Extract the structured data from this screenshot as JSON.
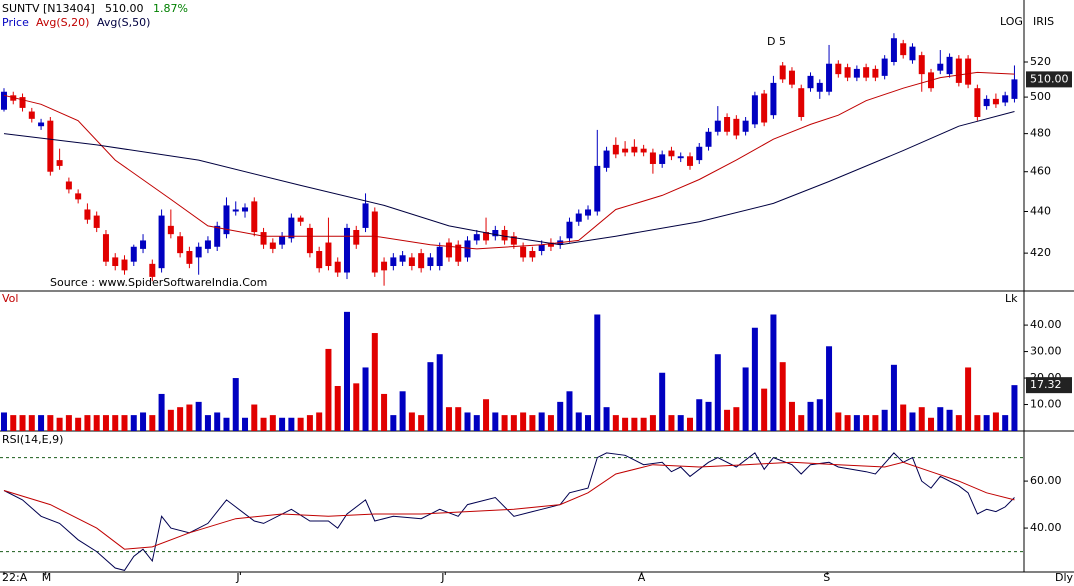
{
  "chart_data": [
    {
      "type": "candlestick",
      "title": "SUNTV [N13404]",
      "last_label": "510.00",
      "change": "1.87%",
      "change_color": "#008000",
      "name": "Price",
      "up_color": "#0000c0",
      "down_color": "#e00000",
      "scale_labels": [
        "LOG",
        "IRIS"
      ],
      "annotation": "D 5",
      "source": "Source : www.SpiderSoftwareIndia.Com",
      "log": true,
      "xlim": [
        -0.43,
        110.03
      ],
      "ylim": [
        402.6,
        557.3
      ],
      "yticks": [
        420,
        440,
        460,
        480,
        500,
        520
      ],
      "ohlc": [
        [
          493,
          505,
          492,
          503
        ],
        [
          501,
          503,
          496,
          498
        ],
        [
          500,
          502,
          492,
          494
        ],
        [
          492,
          494,
          486,
          488
        ],
        [
          484,
          488,
          482,
          486
        ],
        [
          487,
          489,
          458,
          460
        ],
        [
          466,
          472,
          461,
          463
        ],
        [
          455,
          457,
          449,
          451
        ],
        [
          449,
          451,
          444,
          446
        ],
        [
          441,
          444,
          434,
          436
        ],
        [
          438,
          440,
          430,
          432
        ],
        [
          429,
          431,
          414,
          416
        ],
        [
          418,
          420,
          412,
          414
        ],
        [
          417,
          419,
          410,
          412
        ],
        [
          416,
          424,
          414,
          423
        ],
        [
          422,
          429,
          420,
          426
        ],
        [
          415,
          417,
          407,
          409
        ],
        [
          413,
          441,
          411,
          438
        ],
        [
          433,
          441,
          427,
          429
        ],
        [
          428,
          430,
          418,
          420
        ],
        [
          421,
          423,
          413,
          415
        ],
        [
          418,
          425,
          410,
          423
        ],
        [
          422,
          428,
          420,
          426
        ],
        [
          423,
          435,
          421,
          433
        ],
        [
          429,
          447,
          427,
          443
        ],
        [
          440,
          445,
          438,
          441
        ],
        [
          440,
          444,
          437,
          442
        ],
        [
          445,
          447,
          428,
          430
        ],
        [
          430,
          432,
          422,
          424
        ],
        [
          425,
          427,
          420,
          422
        ],
        [
          424,
          430,
          422,
          428
        ],
        [
          427,
          439,
          425,
          437
        ],
        [
          437,
          438,
          433,
          435
        ],
        [
          432,
          434,
          418,
          420
        ],
        [
          421,
          423,
          411,
          413
        ],
        [
          425,
          437,
          412,
          414
        ],
        [
          416,
          418,
          409,
          411
        ],
        [
          411,
          434,
          408,
          432
        ],
        [
          431,
          433,
          422,
          424
        ],
        [
          432,
          449,
          430,
          444
        ],
        [
          440,
          442,
          409,
          411
        ],
        [
          416,
          418,
          405,
          412
        ],
        [
          414,
          420,
          412,
          418
        ],
        [
          416,
          421,
          414,
          419
        ],
        [
          418,
          420,
          412,
          414
        ],
        [
          420,
          422,
          411,
          413
        ],
        [
          414,
          420,
          412,
          418
        ],
        [
          414,
          425,
          412,
          423
        ],
        [
          425,
          427,
          416,
          418
        ],
        [
          424,
          426,
          414,
          416
        ],
        [
          418,
          428,
          416,
          426
        ],
        [
          426,
          431,
          424,
          429
        ],
        [
          430,
          437,
          424,
          426
        ],
        [
          428,
          433,
          426,
          431
        ],
        [
          431,
          433,
          424,
          426
        ],
        [
          428,
          430,
          422,
          424
        ],
        [
          423,
          425,
          416,
          418
        ],
        [
          421,
          423,
          416,
          418
        ],
        [
          421,
          426,
          419,
          424
        ],
        [
          425,
          427,
          421,
          423
        ],
        [
          424,
          428,
          422,
          426
        ],
        [
          427,
          437,
          425,
          435
        ],
        [
          435,
          441,
          433,
          439
        ],
        [
          438,
          443,
          436,
          441
        ],
        [
          440,
          482,
          438,
          463
        ],
        [
          462,
          473,
          460,
          471
        ],
        [
          474,
          478,
          467,
          469
        ],
        [
          472,
          476,
          468,
          470
        ],
        [
          473,
          477,
          468,
          470
        ],
        [
          472,
          474,
          468,
          470
        ],
        [
          470,
          472,
          459,
          464
        ],
        [
          464,
          471,
          462,
          469
        ],
        [
          471,
          473,
          466,
          468
        ],
        [
          467,
          470,
          465,
          468
        ],
        [
          468,
          470,
          461,
          463
        ],
        [
          466,
          475,
          464,
          473
        ],
        [
          473,
          483,
          471,
          481
        ],
        [
          481,
          495,
          479,
          487
        ],
        [
          489,
          491,
          479,
          481
        ],
        [
          488,
          490,
          477,
          479
        ],
        [
          481,
          489,
          479,
          487
        ],
        [
          485,
          503,
          483,
          501
        ],
        [
          502,
          504,
          484,
          486
        ],
        [
          490,
          512,
          488,
          508
        ],
        [
          518,
          520,
          508,
          510
        ],
        [
          515,
          517,
          505,
          507
        ],
        [
          505,
          507,
          487,
          489
        ],
        [
          505,
          514,
          503,
          512
        ],
        [
          503,
          510,
          499,
          508
        ],
        [
          503,
          530,
          501,
          519
        ],
        [
          519,
          521,
          511,
          513
        ],
        [
          517,
          519,
          509,
          511
        ],
        [
          511,
          518,
          509,
          516
        ],
        [
          517,
          519,
          509,
          511
        ],
        [
          516,
          518,
          509,
          511
        ],
        [
          512,
          524,
          510,
          522
        ],
        [
          520,
          537,
          518,
          534
        ],
        [
          531,
          533,
          522,
          524
        ],
        [
          521,
          531,
          519,
          529
        ],
        [
          524,
          526,
          503,
          513
        ],
        [
          514,
          516,
          503,
          505
        ],
        [
          515,
          527,
          513,
          519
        ],
        [
          513,
          525,
          511,
          523
        ],
        [
          522,
          524,
          506,
          508
        ],
        [
          522,
          524,
          505,
          507
        ],
        [
          505,
          507,
          487,
          489
        ],
        [
          495,
          501,
          493,
          499
        ],
        [
          499,
          502,
          494,
          496
        ],
        [
          497,
          503,
          495,
          501
        ],
        [
          499,
          518,
          497,
          510
        ]
      ],
      "series": [
        {
          "name": "Avg(S,20)",
          "color": "#c00000",
          "x": [
            0,
            4,
            8,
            12,
            18,
            22,
            28,
            34,
            40,
            46,
            51,
            58,
            62,
            66,
            71,
            75,
            79,
            83,
            87,
            90,
            93,
            97,
            101,
            105,
            109
          ],
          "values": [
            501,
            496,
            487,
            466,
            446,
            433,
            428,
            428,
            428,
            424,
            422,
            424,
            426,
            441,
            448,
            456,
            466,
            477,
            485,
            490,
            498,
            505,
            511,
            514,
            513
          ]
        },
        {
          "name": "Avg(S,50)",
          "color": "#000040",
          "x": [
            0,
            10,
            21,
            32,
            41,
            48,
            54,
            60,
            66,
            75,
            83,
            89,
            97,
            103,
            109
          ],
          "values": [
            480,
            474,
            466,
            453,
            443,
            433,
            428,
            424,
            428,
            435,
            444,
            455,
            471,
            484,
            492
          ]
        }
      ]
    },
    {
      "type": "bar",
      "label": "Vol",
      "unit": "Lk",
      "xlim": [
        -0.43,
        110.03
      ],
      "ylim": [
        0,
        52.5
      ],
      "yticks": [
        {
          "value": 10,
          "label": "10.00"
        },
        {
          "value": 20,
          "label": "20.00"
        },
        {
          "value": 30,
          "label": "30.00"
        },
        {
          "value": 40,
          "label": "40.00"
        }
      ],
      "values": [
        7,
        6,
        6,
        6,
        6,
        6,
        5,
        6,
        5,
        6,
        6,
        6,
        6,
        6,
        6,
        7,
        6,
        14,
        8,
        9,
        10,
        11,
        6,
        7,
        5,
        20,
        5,
        10,
        5,
        6,
        5,
        5,
        5,
        6,
        7,
        31,
        17,
        45,
        18,
        24,
        37,
        14,
        6,
        15,
        7,
        6,
        26,
        29,
        9,
        9,
        7,
        6,
        12,
        7,
        6,
        6,
        7,
        6,
        7,
        6,
        11,
        15,
        7,
        6,
        44,
        9,
        6,
        5,
        5,
        5,
        6,
        22,
        6,
        6,
        5,
        12,
        11,
        29,
        8,
        9,
        24,
        39,
        16,
        44,
        26,
        11,
        6,
        11,
        12,
        32,
        7,
        6,
        6,
        6,
        6,
        8,
        25,
        10,
        7,
        9,
        5,
        9,
        8,
        6,
        24,
        6,
        6,
        7,
        6,
        17.32
      ]
    },
    {
      "type": "line",
      "title": "RSI(14,E,9)",
      "period_label": "Dly",
      "xlim": [
        -0.43,
        110.03
      ],
      "ylim": [
        21.3,
        80.9
      ],
      "yticks": [
        {
          "value": 40,
          "label": "40.00"
        },
        {
          "value": 60,
          "label": "60.00"
        }
      ],
      "levels": [
        30,
        70
      ],
      "xticks": [
        {
          "value": 0,
          "label": "22:A"
        },
        {
          "value": 4.5,
          "label": "M"
        },
        {
          "value": 25.5,
          "label": "J"
        },
        {
          "value": 47.6,
          "label": "J"
        },
        {
          "value": 68.8,
          "label": "A"
        },
        {
          "value": 88.8,
          "label": "S"
        }
      ],
      "series": [
        {
          "color": "#000050",
          "x": [
            0,
            2,
            4,
            6,
            8,
            10,
            12,
            13,
            14,
            15,
            16,
            17,
            18,
            20,
            22,
            24,
            25,
            27,
            28,
            31,
            33,
            35,
            36,
            37,
            39,
            40,
            42,
            45,
            47,
            49,
            50,
            53,
            55,
            57,
            58,
            60,
            61,
            63,
            64,
            65,
            67,
            69,
            71,
            72,
            73,
            74,
            76,
            77,
            79,
            81,
            82,
            83,
            85,
            86,
            87,
            89,
            90,
            93,
            94,
            96,
            97,
            98,
            99,
            100,
            101,
            103,
            104,
            105,
            106,
            107,
            108,
            109
          ],
          "values": [
            56,
            52,
            45,
            42,
            35,
            30,
            23,
            22,
            28,
            31,
            26,
            45,
            40,
            38,
            42,
            52,
            49,
            43,
            42,
            48,
            43,
            43,
            40,
            46,
            52,
            43,
            45,
            44,
            48,
            45,
            50,
            53,
            45,
            47,
            48,
            50,
            55,
            57,
            70,
            72,
            71,
            67,
            68,
            64,
            66,
            62,
            68,
            70,
            66,
            72,
            65,
            70,
            67,
            63,
            67,
            68,
            66,
            64,
            63,
            72,
            68,
            70,
            60,
            57,
            62,
            58,
            55,
            46,
            48,
            47,
            49,
            53
          ]
        },
        {
          "color": "#c00000",
          "x": [
            0,
            5,
            10,
            13,
            16,
            20,
            25,
            30,
            35,
            40,
            45,
            50,
            55,
            60,
            63,
            66,
            70,
            75,
            80,
            85,
            90,
            95,
            97,
            100,
            103,
            106,
            109
          ],
          "values": [
            56,
            50,
            40,
            31,
            32,
            38,
            44,
            46,
            45,
            46,
            46,
            47,
            48,
            50,
            55,
            63,
            67,
            66,
            67,
            68,
            67,
            66,
            68,
            64,
            60,
            55,
            52
          ]
        }
      ]
    }
  ]
}
